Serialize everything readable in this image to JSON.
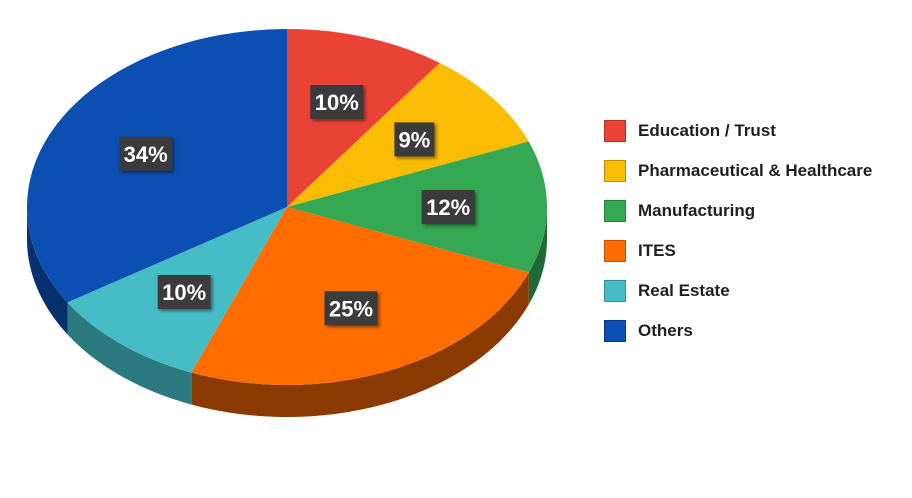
{
  "chart_data": {
    "type": "pie",
    "title": "",
    "legend_position": "right",
    "slices": [
      {
        "name": "Education / Trust",
        "value": 10,
        "label": "10%",
        "color": "#ea4335",
        "side": "#9b2a20"
      },
      {
        "name": "Pharmaceutical & Healthcare",
        "value": 9,
        "label": "9%",
        "color": "#fbbc04",
        "side": "#a67c00"
      },
      {
        "name": "Manufacturing",
        "value": 12,
        "label": "12%",
        "color": "#34a853",
        "side": "#1f6a33"
      },
      {
        "name": "ITES",
        "value": 25,
        "label": "25%",
        "color": "#ff6d01",
        "side": "#8a3a00"
      },
      {
        "name": "Real Estate",
        "value": 10,
        "label": "10%",
        "color": "#46bdc6",
        "side": "#2a7a80"
      },
      {
        "name": "Others",
        "value": 34,
        "label": "34%",
        "color": "#0b4fb3",
        "side": "#07306e"
      }
    ]
  }
}
